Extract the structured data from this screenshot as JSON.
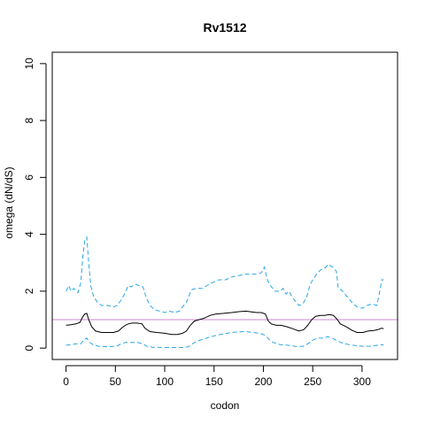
{
  "chart_data": {
    "type": "line",
    "title": "Rv1512",
    "xlabel": "codon",
    "ylabel": "omega (dN/dS)",
    "xlim": [
      -14,
      336
    ],
    "ylim": [
      -0.4,
      10.4
    ],
    "x_ticks": [
      0,
      50,
      100,
      150,
      200,
      250,
      300
    ],
    "y_ticks": [
      0,
      2,
      4,
      6,
      8,
      10
    ],
    "grid": false,
    "legend": "none",
    "reference_line": {
      "y": 1,
      "color": "#cc88cc"
    },
    "series": [
      {
        "style": "dashed",
        "color": "#2aa6e8",
        "points": [
          [
            0,
            2.0
          ],
          [
            3,
            2.2
          ],
          [
            5,
            2.0
          ],
          [
            8,
            2.1
          ],
          [
            12,
            1.95
          ],
          [
            15,
            2.3
          ],
          [
            17,
            3.2
          ],
          [
            19,
            3.8
          ],
          [
            21,
            3.9
          ],
          [
            23,
            3.0
          ],
          [
            25,
            2.2
          ],
          [
            28,
            1.8
          ],
          [
            32,
            1.6
          ],
          [
            36,
            1.5
          ],
          [
            42,
            1.5
          ],
          [
            48,
            1.45
          ],
          [
            52,
            1.5
          ],
          [
            56,
            1.7
          ],
          [
            60,
            1.95
          ],
          [
            63,
            2.2
          ],
          [
            66,
            2.15
          ],
          [
            70,
            2.25
          ],
          [
            74,
            2.2
          ],
          [
            78,
            2.15
          ],
          [
            81,
            1.8
          ],
          [
            85,
            1.5
          ],
          [
            90,
            1.35
          ],
          [
            95,
            1.3
          ],
          [
            100,
            1.25
          ],
          [
            105,
            1.3
          ],
          [
            110,
            1.25
          ],
          [
            115,
            1.3
          ],
          [
            118,
            1.45
          ],
          [
            122,
            1.6
          ],
          [
            127,
            2.05
          ],
          [
            132,
            2.1
          ],
          [
            138,
            2.1
          ],
          [
            143,
            2.2
          ],
          [
            148,
            2.3
          ],
          [
            155,
            2.4
          ],
          [
            162,
            2.4
          ],
          [
            168,
            2.5
          ],
          [
            175,
            2.55
          ],
          [
            182,
            2.6
          ],
          [
            188,
            2.6
          ],
          [
            193,
            2.6
          ],
          [
            198,
            2.65
          ],
          [
            201,
            2.85
          ],
          [
            204,
            2.4
          ],
          [
            207,
            2.2
          ],
          [
            212,
            2.0
          ],
          [
            217,
            2.0
          ],
          [
            220,
            2.1
          ],
          [
            223,
            1.9
          ],
          [
            226,
            2.0
          ],
          [
            230,
            1.75
          ],
          [
            236,
            1.5
          ],
          [
            240,
            1.55
          ],
          [
            244,
            1.8
          ],
          [
            247,
            2.2
          ],
          [
            250,
            2.4
          ],
          [
            254,
            2.6
          ],
          [
            258,
            2.75
          ],
          [
            262,
            2.8
          ],
          [
            266,
            2.95
          ],
          [
            270,
            2.85
          ],
          [
            274,
            2.7
          ],
          [
            276,
            2.1
          ],
          [
            279,
            2.05
          ],
          [
            285,
            1.8
          ],
          [
            290,
            1.6
          ],
          [
            295,
            1.45
          ],
          [
            300,
            1.4
          ],
          [
            305,
            1.5
          ],
          [
            310,
            1.55
          ],
          [
            315,
            1.5
          ],
          [
            318,
            2.0
          ],
          [
            320,
            2.4
          ],
          [
            322,
            2.4
          ]
        ]
      },
      {
        "style": "solid",
        "color": "#000000",
        "points": [
          [
            0,
            0.8
          ],
          [
            5,
            0.82
          ],
          [
            10,
            0.85
          ],
          [
            14,
            0.9
          ],
          [
            17,
            1.1
          ],
          [
            19,
            1.2
          ],
          [
            21,
            1.22
          ],
          [
            23,
            1.0
          ],
          [
            26,
            0.75
          ],
          [
            30,
            0.6
          ],
          [
            36,
            0.55
          ],
          [
            42,
            0.55
          ],
          [
            48,
            0.55
          ],
          [
            53,
            0.6
          ],
          [
            57,
            0.72
          ],
          [
            60,
            0.8
          ],
          [
            63,
            0.85
          ],
          [
            67,
            0.88
          ],
          [
            72,
            0.88
          ],
          [
            77,
            0.85
          ],
          [
            80,
            0.7
          ],
          [
            85,
            0.58
          ],
          [
            92,
            0.55
          ],
          [
            100,
            0.52
          ],
          [
            107,
            0.48
          ],
          [
            113,
            0.48
          ],
          [
            118,
            0.52
          ],
          [
            122,
            0.6
          ],
          [
            126,
            0.8
          ],
          [
            130,
            0.95
          ],
          [
            135,
            1.0
          ],
          [
            140,
            1.05
          ],
          [
            146,
            1.15
          ],
          [
            152,
            1.2
          ],
          [
            160,
            1.22
          ],
          [
            168,
            1.25
          ],
          [
            175,
            1.28
          ],
          [
            182,
            1.3
          ],
          [
            188,
            1.27
          ],
          [
            193,
            1.25
          ],
          [
            198,
            1.25
          ],
          [
            202,
            1.2
          ],
          [
            205,
            0.95
          ],
          [
            208,
            0.85
          ],
          [
            213,
            0.8
          ],
          [
            218,
            0.8
          ],
          [
            224,
            0.75
          ],
          [
            230,
            0.68
          ],
          [
            236,
            0.6
          ],
          [
            241,
            0.65
          ],
          [
            245,
            0.8
          ],
          [
            249,
            1.0
          ],
          [
            253,
            1.12
          ],
          [
            258,
            1.15
          ],
          [
            262,
            1.15
          ],
          [
            267,
            1.18
          ],
          [
            271,
            1.15
          ],
          [
            275,
            1.0
          ],
          [
            278,
            0.85
          ],
          [
            284,
            0.75
          ],
          [
            290,
            0.62
          ],
          [
            295,
            0.55
          ],
          [
            301,
            0.55
          ],
          [
            306,
            0.6
          ],
          [
            312,
            0.62
          ],
          [
            316,
            0.65
          ],
          [
            320,
            0.7
          ],
          [
            322,
            0.68
          ]
        ]
      },
      {
        "style": "dashed",
        "color": "#2aa6e8",
        "points": [
          [
            0,
            0.1
          ],
          [
            5,
            0.12
          ],
          [
            10,
            0.15
          ],
          [
            15,
            0.15
          ],
          [
            18,
            0.3
          ],
          [
            21,
            0.35
          ],
          [
            24,
            0.2
          ],
          [
            28,
            0.1
          ],
          [
            35,
            0.05
          ],
          [
            45,
            0.05
          ],
          [
            52,
            0.08
          ],
          [
            56,
            0.15
          ],
          [
            60,
            0.2
          ],
          [
            65,
            0.2
          ],
          [
            72,
            0.2
          ],
          [
            78,
            0.15
          ],
          [
            82,
            0.06
          ],
          [
            88,
            0.03
          ],
          [
            100,
            0.02
          ],
          [
            110,
            0.02
          ],
          [
            120,
            0.02
          ],
          [
            124,
            0.05
          ],
          [
            128,
            0.15
          ],
          [
            133,
            0.25
          ],
          [
            138,
            0.3
          ],
          [
            145,
            0.38
          ],
          [
            152,
            0.45
          ],
          [
            160,
            0.5
          ],
          [
            167,
            0.55
          ],
          [
            175,
            0.57
          ],
          [
            182,
            0.58
          ],
          [
            190,
            0.55
          ],
          [
            196,
            0.52
          ],
          [
            202,
            0.45
          ],
          [
            206,
            0.3
          ],
          [
            210,
            0.2
          ],
          [
            217,
            0.12
          ],
          [
            225,
            0.1
          ],
          [
            233,
            0.06
          ],
          [
            240,
            0.06
          ],
          [
            245,
            0.15
          ],
          [
            250,
            0.28
          ],
          [
            255,
            0.35
          ],
          [
            260,
            0.35
          ],
          [
            265,
            0.4
          ],
          [
            270,
            0.35
          ],
          [
            275,
            0.25
          ],
          [
            280,
            0.18
          ],
          [
            287,
            0.12
          ],
          [
            295,
            0.08
          ],
          [
            302,
            0.06
          ],
          [
            310,
            0.07
          ],
          [
            316,
            0.1
          ],
          [
            322,
            0.12
          ]
        ]
      }
    ]
  }
}
